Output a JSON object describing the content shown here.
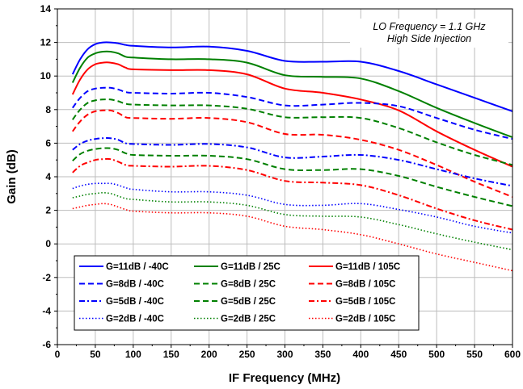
{
  "chart_data": {
    "type": "line",
    "xlabel": "IF Frequency (MHz)",
    "ylabel": "Gain (dB)",
    "xlim": [
      0,
      600
    ],
    "ylim": [
      -6,
      14
    ],
    "xticks": [
      0,
      50,
      100,
      150,
      200,
      250,
      300,
      350,
      400,
      450,
      500,
      550,
      600
    ],
    "yticks": [
      -6,
      -4,
      -2,
      0,
      2,
      4,
      6,
      8,
      10,
      12,
      14
    ],
    "grid": true,
    "legend_position": "bottom-center",
    "annotation": [
      "LO Frequency = 1.1 GHz",
      "High Side Injection"
    ],
    "x": [
      20,
      30,
      40,
      50,
      60,
      70,
      80,
      90,
      100,
      150,
      200,
      250,
      300,
      350,
      400,
      450,
      500,
      550,
      600
    ],
    "series": [
      {
        "name": "G=11dB / -40C",
        "color": "#0000ff",
        "dash": "solid",
        "values": [
          10.1,
          11.0,
          11.6,
          11.9,
          12.0,
          12.0,
          11.95,
          11.85,
          11.8,
          11.7,
          11.75,
          11.5,
          10.9,
          10.85,
          10.85,
          10.3,
          9.5,
          8.7,
          7.9
        ]
      },
      {
        "name": "G=11dB / 25C",
        "color": "#008000",
        "dash": "solid",
        "values": [
          9.6,
          10.5,
          11.1,
          11.35,
          11.45,
          11.45,
          11.35,
          11.15,
          11.1,
          11.0,
          11.0,
          10.8,
          10.05,
          9.95,
          9.85,
          9.1,
          8.1,
          7.2,
          6.35
        ]
      },
      {
        "name": "G=11dB / 105C",
        "color": "#ff0000",
        "dash": "solid",
        "values": [
          8.9,
          9.8,
          10.4,
          10.7,
          10.8,
          10.8,
          10.7,
          10.5,
          10.4,
          10.35,
          10.35,
          10.1,
          9.25,
          9.0,
          8.6,
          7.95,
          6.7,
          5.6,
          4.6
        ]
      },
      {
        "name": "G=8dB / -40C",
        "color": "#0000ff",
        "dash": "dash",
        "values": [
          8.1,
          8.7,
          9.1,
          9.25,
          9.3,
          9.3,
          9.2,
          9.05,
          9.0,
          8.95,
          9.0,
          8.75,
          8.25,
          8.3,
          8.4,
          8.2,
          7.5,
          6.8,
          6.25
        ]
      },
      {
        "name": "G=8dB / 25C",
        "color": "#008000",
        "dash": "dash",
        "values": [
          7.4,
          8.0,
          8.4,
          8.55,
          8.6,
          8.6,
          8.5,
          8.35,
          8.3,
          8.25,
          8.25,
          8.05,
          7.55,
          7.55,
          7.5,
          6.9,
          6.05,
          5.3,
          4.7
        ]
      },
      {
        "name": "G=8dB / 105C",
        "color": "#ff0000",
        "dash": "dash",
        "values": [
          6.7,
          7.3,
          7.7,
          7.9,
          7.95,
          7.95,
          7.8,
          7.55,
          7.5,
          7.45,
          7.5,
          7.25,
          6.55,
          6.5,
          6.2,
          5.6,
          4.7,
          3.7,
          2.8
        ]
      },
      {
        "name": "G=5dB / -40C",
        "color": "#0000ff",
        "dash": "dashdot",
        "values": [
          5.6,
          5.95,
          6.15,
          6.25,
          6.3,
          6.3,
          6.2,
          6.0,
          5.95,
          5.9,
          5.95,
          5.75,
          5.15,
          5.2,
          5.3,
          5.0,
          4.45,
          3.9,
          3.45
        ]
      },
      {
        "name": "G=5dB / 25C",
        "color": "#008000",
        "dash": "dash",
        "values": [
          4.95,
          5.35,
          5.55,
          5.65,
          5.7,
          5.7,
          5.6,
          5.4,
          5.3,
          5.25,
          5.25,
          5.05,
          4.45,
          4.4,
          4.45,
          4.05,
          3.4,
          2.8,
          2.25
        ]
      },
      {
        "name": "G=5dB / 105C",
        "color": "#ff0000",
        "dash": "dashdot",
        "values": [
          4.25,
          4.65,
          4.85,
          5.0,
          5.05,
          5.05,
          4.9,
          4.7,
          4.65,
          4.6,
          4.65,
          4.4,
          3.75,
          3.65,
          3.5,
          2.9,
          2.1,
          1.4,
          0.85
        ]
      },
      {
        "name": "G=2dB / -40C",
        "color": "#0000ff",
        "dash": "dot",
        "values": [
          3.3,
          3.45,
          3.55,
          3.6,
          3.6,
          3.6,
          3.5,
          3.35,
          3.25,
          3.1,
          3.1,
          2.9,
          2.35,
          2.3,
          2.4,
          2.05,
          1.6,
          1.05,
          0.65
        ]
      },
      {
        "name": "G=2dB / 25C",
        "color": "#008000",
        "dash": "dot",
        "values": [
          2.75,
          2.85,
          2.95,
          3.0,
          3.05,
          3.0,
          2.85,
          2.7,
          2.65,
          2.5,
          2.5,
          2.3,
          1.75,
          1.65,
          1.6,
          1.15,
          0.6,
          0.1,
          -0.35
        ]
      },
      {
        "name": "G=2dB / 105C",
        "color": "#ff0000",
        "dash": "dot",
        "values": [
          2.1,
          2.2,
          2.3,
          2.35,
          2.4,
          2.35,
          2.2,
          2.05,
          1.95,
          1.85,
          1.85,
          1.65,
          1.05,
          0.85,
          0.55,
          0.0,
          -0.6,
          -1.1,
          -1.6
        ]
      }
    ]
  }
}
